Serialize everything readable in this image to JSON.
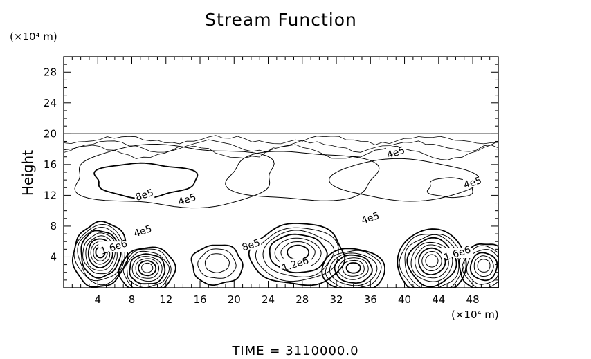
{
  "chart_data": {
    "type": "contour",
    "title": "Stream Function",
    "ylabel": "Height",
    "y_unit": "(×10⁴ m)",
    "x_unit": "(×10⁴ m)",
    "xlim": [
      0,
      51
    ],
    "ylim": [
      0,
      30
    ],
    "x_ticks": [
      4,
      8,
      12,
      16,
      20,
      24,
      28,
      32,
      36,
      40,
      44,
      48
    ],
    "y_ticks": [
      4,
      8,
      12,
      16,
      20,
      24,
      28
    ],
    "contour_labels": [
      {
        "text": "4e5",
        "x": 39.0,
        "y": 17.5
      },
      {
        "text": "4e5",
        "x": 48.0,
        "y": 13.6
      },
      {
        "text": "8e5",
        "x": 9.5,
        "y": 12.0
      },
      {
        "text": "4e5",
        "x": 14.5,
        "y": 11.4
      },
      {
        "text": "4e5",
        "x": 9.3,
        "y": 7.3
      },
      {
        "text": "4e5",
        "x": 36.0,
        "y": 9.0
      },
      {
        "text": "8e5",
        "x": 22.0,
        "y": 5.5
      },
      {
        "text": "1.2e6",
        "x": 27.2,
        "y": 3.0
      },
      {
        "text": "1.6e6",
        "x": 5.9,
        "y": 5.2
      },
      {
        "text": "1.6e6",
        "x": 46.2,
        "y": 4.4
      }
    ],
    "outer_band": {
      "x_range": [
        0,
        51
      ],
      "y_range": [
        0,
        20
      ]
    },
    "vortices": [
      {
        "cx": 4.3,
        "cy": 4.3,
        "rx": 3.2,
        "ry": 4.2,
        "levels": 10
      },
      {
        "cx": 9.8,
        "cy": 2.3,
        "rx": 3.2,
        "ry": 3.0,
        "levels": 8
      },
      {
        "cx": 18.0,
        "cy": 3.0,
        "rx": 3.0,
        "ry": 2.6,
        "levels": 3
      },
      {
        "cx": 27.5,
        "cy": 4.3,
        "rx": 5.5,
        "ry": 4.0,
        "levels": 7
      },
      {
        "cx": 34.0,
        "cy": 2.3,
        "rx": 3.6,
        "ry": 2.9,
        "levels": 7
      },
      {
        "cx": 43.2,
        "cy": 3.2,
        "rx": 4.0,
        "ry": 4.4,
        "levels": 9
      },
      {
        "cx": 49.3,
        "cy": 2.6,
        "rx": 2.8,
        "ry": 3.2,
        "levels": 6
      }
    ],
    "upper_cells": [
      {
        "cx": 9.5,
        "cy": 14.0,
        "rx": 6.0,
        "ry": 2.2
      },
      {
        "cx": 13.0,
        "cy": 14.5,
        "rx": 12.0,
        "ry": 4.0
      },
      {
        "cx": 28.0,
        "cy": 14.5,
        "rx": 9.0,
        "ry": 3.2
      },
      {
        "cx": 45.5,
        "cy": 13.0,
        "rx": 2.8,
        "ry": 1.3
      },
      {
        "cx": 40.0,
        "cy": 14.0,
        "rx": 8.0,
        "ry": 2.8
      }
    ],
    "grid": false
  },
  "footer": {
    "time_label": "TIME",
    "equals": "=",
    "time_value": "3110000.0"
  }
}
